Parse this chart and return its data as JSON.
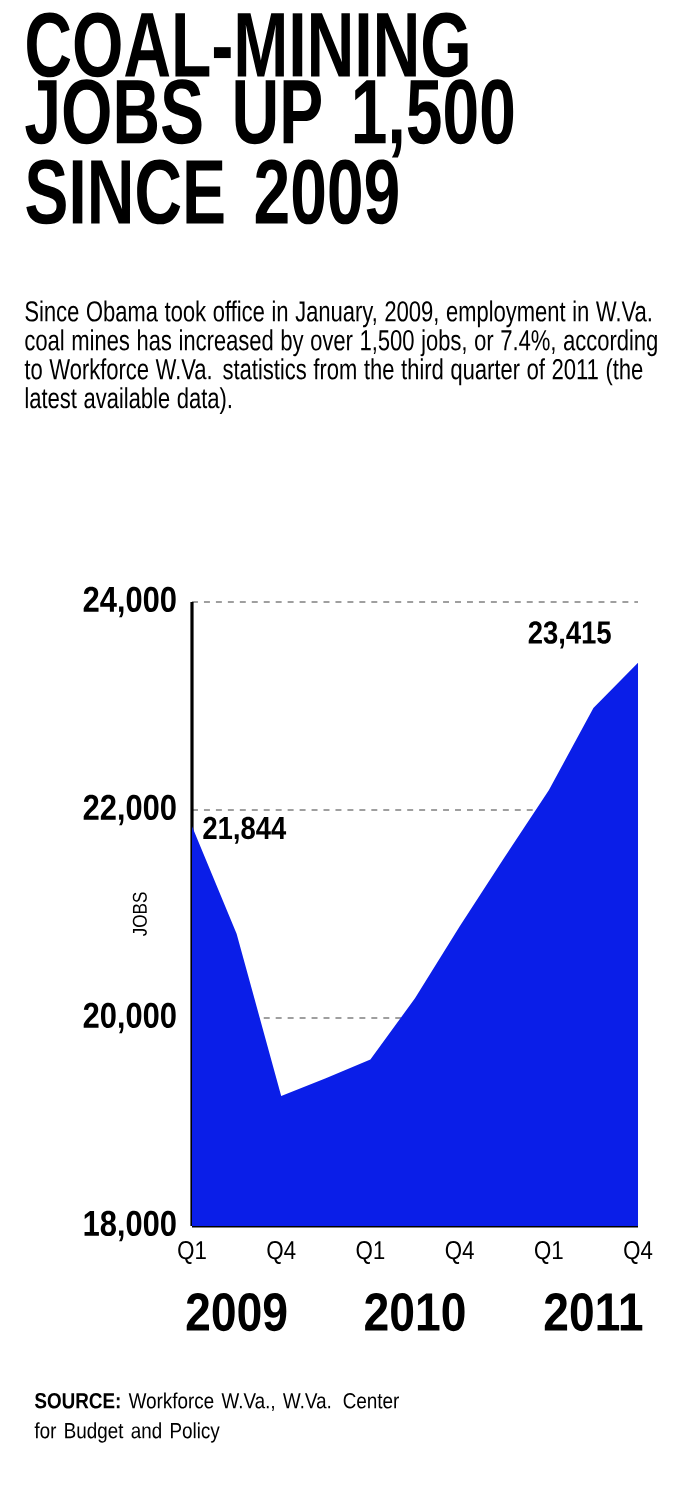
{
  "chart_data": {
    "type": "area",
    "title": "COAL-MINING JOBS UP 1,500 SINCE 2009",
    "subtitle": "Since Obama took office in January, 2009, employment in W.Va. coal mines has increased by over 1,500 jobs, or 7.4%, according to Workforce W.Va. statistics from the third quarter of 2011 (the latest available data).",
    "ylabel": "JOBS",
    "categories": [
      "Q1",
      null,
      "Q4",
      null,
      "Q1",
      null,
      "Q4",
      null,
      "Q1",
      null,
      "Q4"
    ],
    "values": [
      21844,
      20810,
      19250,
      19420,
      19600,
      20190,
      20880,
      21540,
      22190,
      22980,
      23415
    ],
    "value_labels": [
      "21,844",
      null,
      null,
      null,
      null,
      null,
      null,
      null,
      null,
      null,
      "23,415"
    ],
    "color": "#0a1ee8",
    "ylim": [
      18000,
      24000
    ],
    "yticks": [
      {
        "value": 18000,
        "label": "18,000"
      },
      {
        "value": 20000,
        "label": "20,000"
      },
      {
        "value": 22000,
        "label": "22,000"
      },
      {
        "value": 24000,
        "label": "24,000"
      }
    ],
    "grid": "y",
    "annotations": [
      "2009",
      "2010",
      "2011",
      "**SOURCE:** Workforce W.Va., W.Va. Center for Budget and Policy"
    ]
  }
}
